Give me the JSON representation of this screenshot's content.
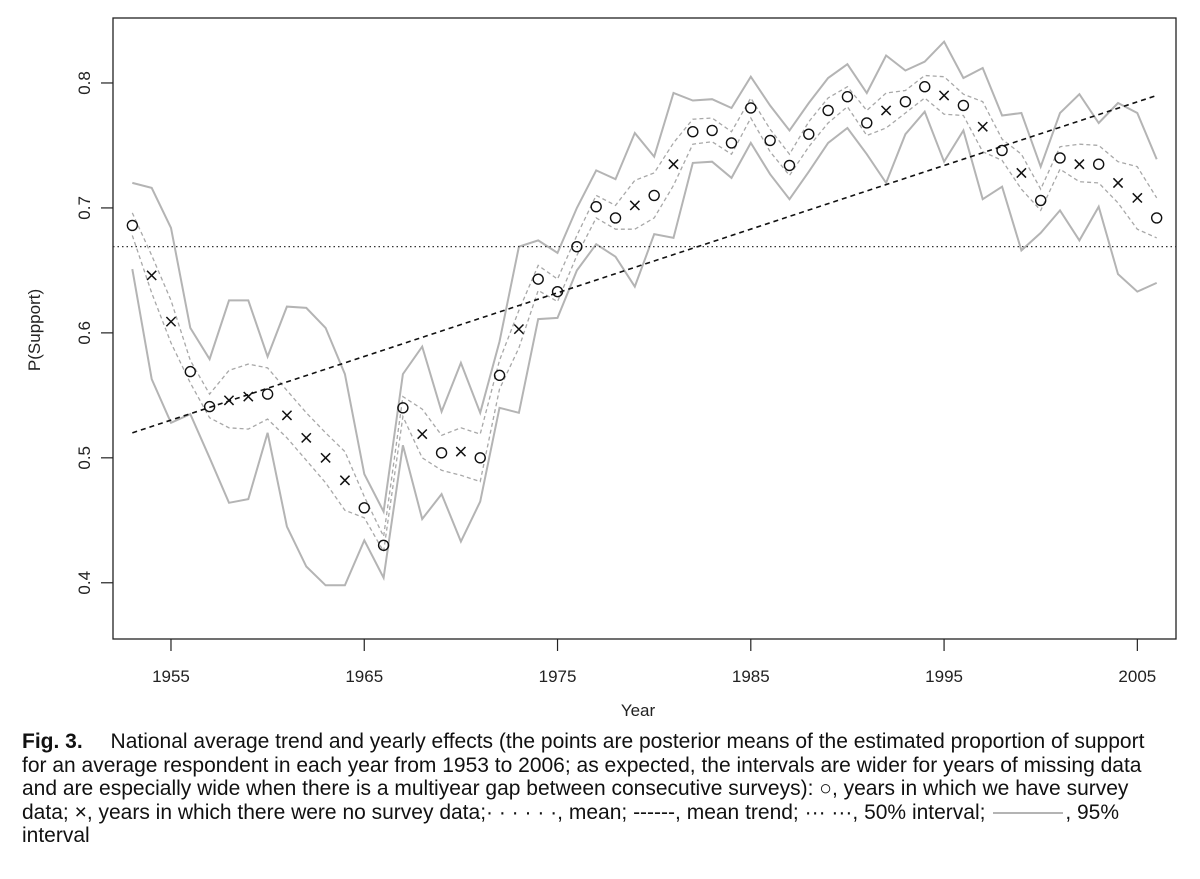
{
  "chart_data": {
    "type": "line",
    "xlabel": "Year",
    "ylabel": "P(Support)",
    "xlim": [
      1952.0,
      2007.0
    ],
    "ylim": [
      0.355,
      0.852
    ],
    "x_ticks": [
      1955,
      1965,
      1975,
      1985,
      1995,
      2005
    ],
    "y_ticks": [
      0.4,
      0.5,
      0.6,
      0.7,
      0.8
    ],
    "y_tick_labels": [
      "0.4",
      "0.5",
      "0.6",
      "0.7",
      "0.8"
    ],
    "mean": 0.669,
    "trend": {
      "start": [
        1953,
        0.52
      ],
      "end": [
        2006,
        0.79
      ]
    },
    "years": [
      1953,
      1954,
      1955,
      1956,
      1957,
      1958,
      1959,
      1960,
      1961,
      1962,
      1963,
      1964,
      1965,
      1966,
      1967,
      1968,
      1969,
      1970,
      1971,
      1972,
      1973,
      1974,
      1975,
      1976,
      1977,
      1978,
      1979,
      1980,
      1981,
      1982,
      1983,
      1984,
      1985,
      1986,
      1987,
      1988,
      1989,
      1990,
      1991,
      1992,
      1993,
      1994,
      1995,
      1996,
      1997,
      1998,
      1999,
      2000,
      2001,
      2002,
      2003,
      2004,
      2005,
      2006
    ],
    "survey_data": [
      1,
      0,
      0,
      1,
      1,
      0,
      0,
      1,
      0,
      0,
      0,
      0,
      1,
      1,
      1,
      0,
      1,
      0,
      1,
      1,
      0,
      1,
      1,
      1,
      1,
      1,
      0,
      1,
      0,
      1,
      1,
      1,
      1,
      1,
      1,
      1,
      1,
      1,
      1,
      0,
      1,
      1,
      0,
      1,
      0,
      1,
      0,
      1,
      1,
      0,
      1,
      0,
      0,
      1
    ],
    "estimate": [
      0.686,
      0.646,
      0.609,
      0.569,
      0.541,
      0.546,
      0.549,
      0.551,
      0.534,
      0.516,
      0.5,
      0.482,
      0.46,
      0.43,
      0.54,
      0.519,
      0.504,
      0.505,
      0.5,
      0.566,
      0.603,
      0.643,
      0.633,
      0.669,
      0.701,
      0.692,
      0.702,
      0.71,
      0.735,
      0.761,
      0.762,
      0.752,
      0.78,
      0.754,
      0.734,
      0.759,
      0.778,
      0.789,
      0.768,
      0.778,
      0.785,
      0.797,
      0.79,
      0.782,
      0.765,
      0.746,
      0.728,
      0.706,
      0.74,
      0.735,
      0.735,
      0.72,
      0.708,
      0.692
    ],
    "ci50_lower": [
      0.678,
      0.632,
      0.592,
      0.56,
      0.532,
      0.524,
      0.523,
      0.531,
      0.516,
      0.498,
      0.48,
      0.458,
      0.452,
      0.425,
      0.533,
      0.5,
      0.49,
      0.486,
      0.481,
      0.555,
      0.588,
      0.634,
      0.625,
      0.662,
      0.692,
      0.683,
      0.683,
      0.692,
      0.718,
      0.751,
      0.753,
      0.743,
      0.772,
      0.745,
      0.726,
      0.749,
      0.768,
      0.781,
      0.758,
      0.764,
      0.776,
      0.788,
      0.775,
      0.774,
      0.745,
      0.738,
      0.715,
      0.698,
      0.731,
      0.721,
      0.72,
      0.704,
      0.683,
      0.676
    ],
    "ci50_upper": [
      0.696,
      0.662,
      0.626,
      0.578,
      0.551,
      0.57,
      0.575,
      0.572,
      0.554,
      0.536,
      0.52,
      0.505,
      0.469,
      0.437,
      0.549,
      0.539,
      0.518,
      0.524,
      0.519,
      0.578,
      0.618,
      0.654,
      0.643,
      0.678,
      0.71,
      0.702,
      0.722,
      0.728,
      0.752,
      0.771,
      0.772,
      0.761,
      0.788,
      0.763,
      0.743,
      0.769,
      0.788,
      0.797,
      0.778,
      0.792,
      0.794,
      0.806,
      0.805,
      0.791,
      0.785,
      0.755,
      0.743,
      0.715,
      0.749,
      0.751,
      0.75,
      0.737,
      0.733,
      0.708
    ],
    "ci95_lower": [
      0.651,
      0.563,
      0.528,
      0.535,
      0.5,
      0.464,
      0.467,
      0.52,
      0.445,
      0.413,
      0.398,
      0.398,
      0.434,
      0.404,
      0.51,
      0.451,
      0.471,
      0.433,
      0.465,
      0.54,
      0.536,
      0.611,
      0.612,
      0.65,
      0.671,
      0.661,
      0.637,
      0.679,
      0.676,
      0.736,
      0.737,
      0.724,
      0.752,
      0.727,
      0.707,
      0.729,
      0.752,
      0.764,
      0.743,
      0.72,
      0.759,
      0.777,
      0.737,
      0.762,
      0.707,
      0.717,
      0.666,
      0.68,
      0.698,
      0.674,
      0.701,
      0.647,
      0.633,
      0.64
    ],
    "ci95_upper": [
      0.72,
      0.716,
      0.684,
      0.604,
      0.579,
      0.626,
      0.626,
      0.581,
      0.621,
      0.62,
      0.604,
      0.567,
      0.487,
      0.457,
      0.567,
      0.589,
      0.537,
      0.576,
      0.536,
      0.593,
      0.669,
      0.674,
      0.664,
      0.7,
      0.73,
      0.723,
      0.76,
      0.741,
      0.792,
      0.786,
      0.787,
      0.78,
      0.805,
      0.782,
      0.762,
      0.784,
      0.804,
      0.815,
      0.792,
      0.822,
      0.81,
      0.817,
      0.833,
      0.804,
      0.812,
      0.774,
      0.776,
      0.733,
      0.776,
      0.791,
      0.768,
      0.784,
      0.776,
      0.739
    ]
  },
  "caption": {
    "label": "Fig. 3.",
    "text": "National average trend and yearly effects (the points are posterior means of the estimated proportion of support for an average respondent in each year from 1953 to 2006; as expected, the intervals are wider for years of missing data and are especially wide when there is a multiyear gap between consecutive surveys):",
    "circle_symbol": "○",
    "circle_desc": ", years in which we have survey data;",
    "cross_symbol": "×",
    "cross_desc": ", years in which there were no survey data;",
    "mean_symbol": "· · · · · ·",
    "mean_desc": ", mean;",
    "trend_symbol": "------",
    "trend_desc": ", mean trend;",
    "ci50_symbol": "··· ···",
    "ci50_desc": ", 50% interval;",
    "ci95_desc": ", 95% interval"
  },
  "colors": {
    "ci95": "#b4b4b4",
    "ci50": "#a8a8a8",
    "points": "#111111",
    "axis": "#222222"
  }
}
